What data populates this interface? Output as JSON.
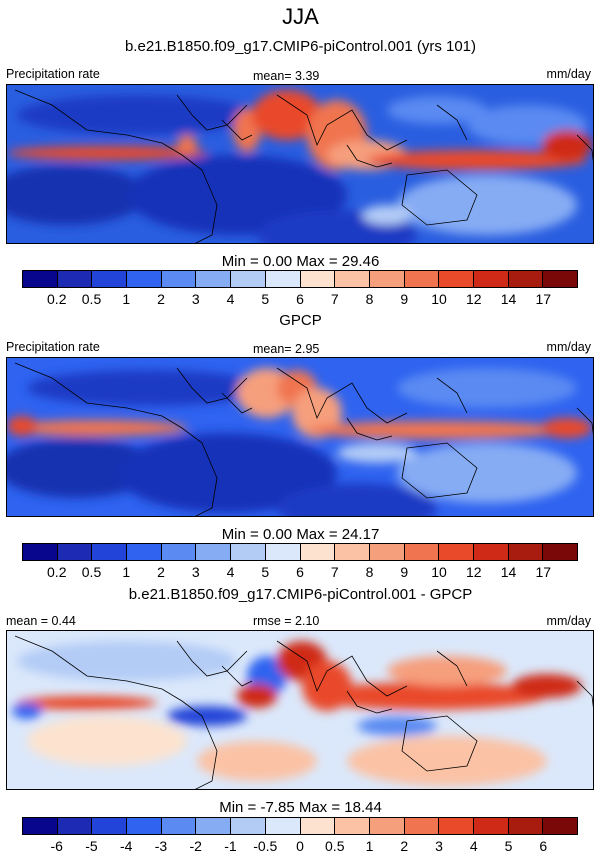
{
  "season": "JJA",
  "units": "mm/day",
  "panels": [
    {
      "title": "b.e21.B1850.f09_g17.CMIP6-piControl.001 (yrs 101)",
      "left_label": "Precipitation rate",
      "center_label": "mean=   3.39",
      "minmax": "Min =   0.00 Max =  29.46"
    },
    {
      "title": "GPCP",
      "left_label": "Precipitation rate",
      "center_label": "mean=   2.95",
      "minmax": "Min =   0.00 Max =  24.17"
    },
    {
      "title": "b.e21.B1850.f09_g17.CMIP6-piControl.001 - GPCP",
      "left_label": "mean =   0.44",
      "center_label": "rmse =   2.10",
      "minmax": "Min =  -7.85 Max =  18.44"
    }
  ],
  "colorbar_abs": {
    "colors": [
      "#08068c",
      "#1c2ab4",
      "#2244d8",
      "#2f63f0",
      "#5a8af2",
      "#86acf4",
      "#b3ccf6",
      "#dbe8fb",
      "#fde3cf",
      "#fbc2a5",
      "#f69f7d",
      "#f07450",
      "#e94a2a",
      "#cf2a18",
      "#a81c10",
      "#7a0808"
    ],
    "ticks": [
      "0.2",
      "0.5",
      "1",
      "2",
      "3",
      "4",
      "5",
      "6",
      "7",
      "8",
      "9",
      "10",
      "12",
      "14",
      "17"
    ]
  },
  "colorbar_diff": {
    "colors": [
      "#08068c",
      "#1c2ab4",
      "#2244d8",
      "#2f63f0",
      "#5a8af2",
      "#86acf4",
      "#b3ccf6",
      "#dbe8fb",
      "#fde3cf",
      "#fbc2a5",
      "#f69f7d",
      "#f07450",
      "#e94a2a",
      "#cf2a18",
      "#a81c10",
      "#7a0808"
    ],
    "ticks": [
      "-6",
      "-5",
      "-4",
      "-3",
      "-2",
      "-1",
      "-0.5",
      "0",
      "0.5",
      "1",
      "2",
      "3",
      "4",
      "5",
      "6"
    ]
  }
}
